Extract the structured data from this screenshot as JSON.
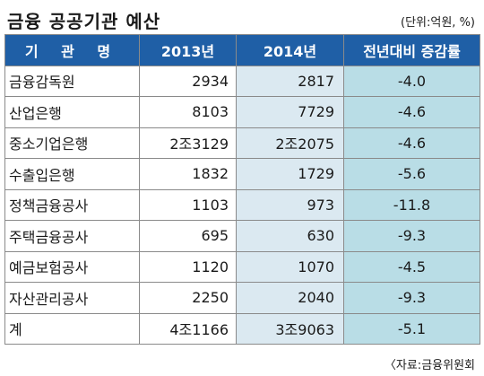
{
  "title": "금융 공공기관 예산",
  "unit": "(단위:억원, %)",
  "source": "〈자료:금융위원회",
  "chart_data": {
    "type": "table",
    "columns": [
      "기 관 명",
      "2013년",
      "2014년",
      "전년대비 증감률"
    ],
    "rows": [
      {
        "name": "금융감독원",
        "y2013": "2934",
        "y2014": "2817",
        "change": "-4.0"
      },
      {
        "name": "산업은행",
        "y2013": "8103",
        "y2014": "7729",
        "change": "-4.6"
      },
      {
        "name": "중소기업은행",
        "y2013": "2조3129",
        "y2014": "2조2075",
        "change": "-4.6"
      },
      {
        "name": "수출입은행",
        "y2013": "1832",
        "y2014": "1729",
        "change": "-5.6"
      },
      {
        "name": "정책금융공사",
        "y2013": "1103",
        "y2014": "973",
        "change": "-11.8"
      },
      {
        "name": "주택금융공사",
        "y2013": "695",
        "y2014": "630",
        "change": "-9.3"
      },
      {
        "name": "예금보험공사",
        "y2013": "1120",
        "y2014": "1070",
        "change": "-4.5"
      },
      {
        "name": "자산관리공사",
        "y2013": "2250",
        "y2014": "2040",
        "change": "-9.3"
      },
      {
        "name": "계",
        "y2013": "4조1166",
        "y2014": "3조9063",
        "change": "-5.1"
      }
    ]
  },
  "colors": {
    "header_bg": "#1f5fa6",
    "col2014_bg": "#dbe9f1",
    "change_bg": "#b9dde6"
  }
}
